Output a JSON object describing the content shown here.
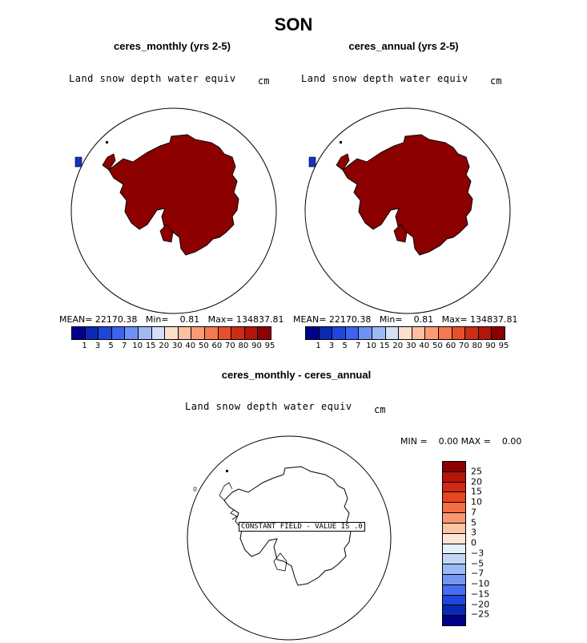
{
  "title": "SON",
  "panels": [
    {
      "title": "ceres_monthly (yrs 2-5)",
      "variable": "Land snow depth water equiv",
      "units": "cm",
      "stats": "MEAN= 22170.38   Min=    0.81   Max= 134837.81"
    },
    {
      "title": "ceres_annual (yrs 2-5)",
      "variable": "Land snow depth water equiv",
      "units": "cm",
      "stats": "MEAN= 22170.38   Min=    0.81   Max= 134837.81"
    }
  ],
  "colorbar": {
    "ticks": [
      "1",
      "3",
      "5",
      "7",
      "10",
      "15",
      "20",
      "30",
      "40",
      "50",
      "60",
      "70",
      "80",
      "90",
      "95"
    ],
    "colors": [
      "#00008c",
      "#0a28b4",
      "#1e46dc",
      "#3c64f0",
      "#6e91f5",
      "#a0b9f5",
      "#d2e1f8",
      "#fde0cc",
      "#fcbfa0",
      "#fa9b73",
      "#f57850",
      "#e6502d",
      "#cd2d14",
      "#b4140a",
      "#8c0000"
    ]
  },
  "diff": {
    "title": "ceres_monthly - ceres_annual",
    "variable": "Land snow depth water equiv",
    "units": "cm",
    "minmax": "MIN =    0.00 MAX =    0.00",
    "constant_label": "CONSTANT FIELD - VALUE IS .0",
    "colorbar_ticks": [
      "25",
      "20",
      "15",
      "10",
      "7",
      "5",
      "3",
      "0",
      "−3",
      "−5",
      "−7",
      "−10",
      "−15",
      "−20",
      "−25"
    ],
    "colorbar_colors": [
      "#8c0000",
      "#b4140a",
      "#d22814",
      "#e6461e",
      "#f56e46",
      "#fa966e",
      "#fcc3a5",
      "#fde6d7",
      "#e6f0fa",
      "#c3d7f5",
      "#9bb9f5",
      "#7396f0",
      "#466ef0",
      "#1e46dc",
      "#0a28b4",
      "#00008c"
    ]
  },
  "map_colors": {
    "snow": "#8c0000",
    "ocean": "#ffffff",
    "low": "#1432c8"
  }
}
